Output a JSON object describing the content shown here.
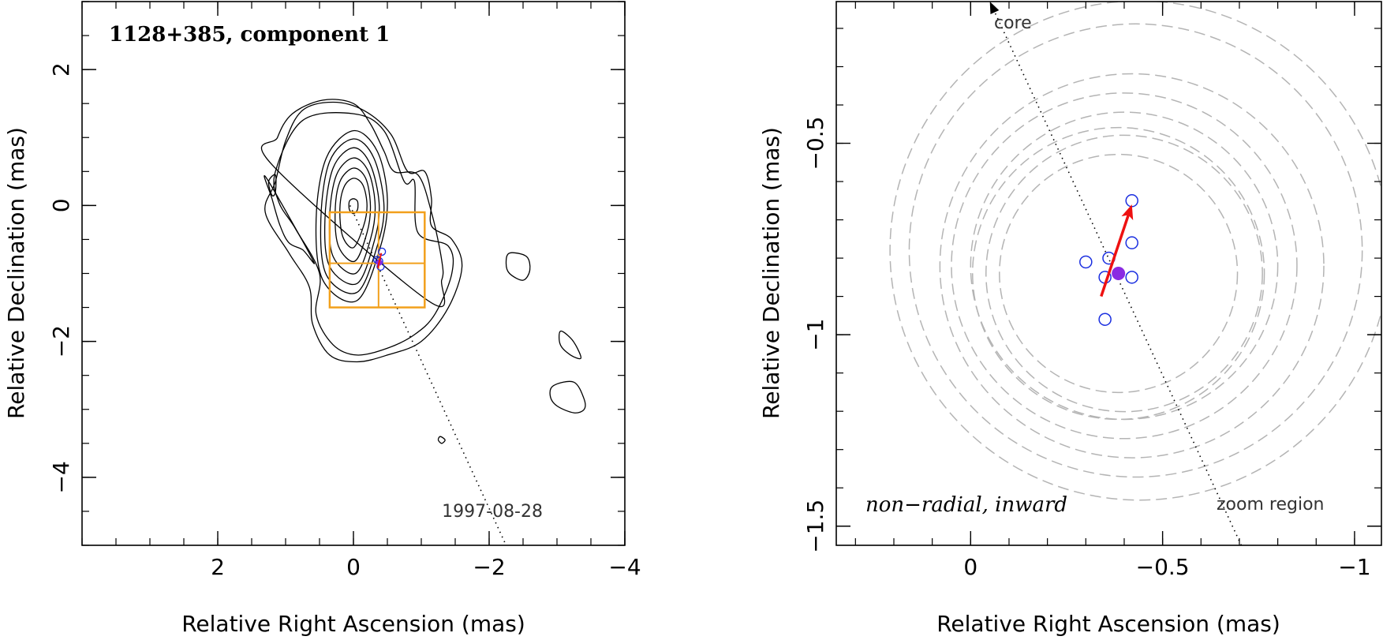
{
  "colors": {
    "axis": "#000000",
    "contour": "#000000",
    "box": "#f2a01c",
    "marker": "#1a2ee0",
    "mean": "#8a2be2",
    "arrow": "#ee1111",
    "circles": "#b4b4b4"
  },
  "chart_data": [
    {
      "type": "contour",
      "title": "1128+385, component 1",
      "xlabel": "Relative Right Ascension (mas)",
      "ylabel": "Relative Declination (mas)",
      "xlim": [
        4.0,
        -4.0
      ],
      "ylim": [
        -5.0,
        3.0
      ],
      "xticks": [
        2,
        0,
        -2,
        -4
      ],
      "xtick_labels": [
        "2",
        "0",
        "−2",
        "−4"
      ],
      "yticks": [
        2,
        0,
        -2,
        -4
      ],
      "ytick_labels": [
        "2",
        "0",
        "−2",
        "−4"
      ],
      "epoch_label": "1997-08-28",
      "contours": [
        [
          [
            0.0,
            1.1
          ],
          [
            -0.35,
            0.8
          ],
          [
            -0.5,
            0.1
          ],
          [
            -0.4,
            -0.6
          ],
          [
            -0.05,
            -1.4
          ],
          [
            0.45,
            -1.1
          ],
          [
            0.55,
            -0.2
          ],
          [
            0.4,
            0.7
          ]
        ],
        [
          [
            0.0,
            0.98
          ],
          [
            -0.3,
            0.7
          ],
          [
            -0.45,
            0.0
          ],
          [
            -0.35,
            -0.6
          ],
          [
            -0.05,
            -1.28
          ],
          [
            0.4,
            -1.02
          ],
          [
            0.48,
            -0.2
          ],
          [
            0.35,
            0.65
          ]
        ],
        [
          [
            0.0,
            0.85
          ],
          [
            -0.25,
            0.6
          ],
          [
            -0.38,
            0.0
          ],
          [
            -0.3,
            -0.55
          ],
          [
            -0.05,
            -1.15
          ],
          [
            0.35,
            -0.9
          ],
          [
            0.42,
            -0.2
          ],
          [
            0.3,
            0.55
          ]
        ],
        [
          [
            0.0,
            0.7
          ],
          [
            -0.22,
            0.5
          ],
          [
            -0.32,
            0.0
          ],
          [
            -0.25,
            -0.5
          ],
          [
            -0.03,
            -1.0
          ],
          [
            0.3,
            -0.75
          ],
          [
            0.35,
            -0.15
          ],
          [
            0.25,
            0.45
          ]
        ],
        [
          [
            0.0,
            0.55
          ],
          [
            -0.18,
            0.4
          ],
          [
            -0.25,
            0.0
          ],
          [
            -0.2,
            -0.4
          ],
          [
            -0.02,
            -0.82
          ],
          [
            0.22,
            -0.6
          ],
          [
            0.27,
            -0.1
          ],
          [
            0.2,
            0.35
          ]
        ],
        [
          [
            0.0,
            0.4
          ],
          [
            -0.14,
            0.3
          ],
          [
            -0.2,
            0.0
          ],
          [
            -0.15,
            -0.3
          ],
          [
            0.0,
            -0.62
          ],
          [
            0.16,
            -0.45
          ],
          [
            0.2,
            -0.05
          ],
          [
            0.14,
            0.27
          ]
        ],
        [
          [
            0.0,
            0.1
          ],
          [
            -0.06,
            0.06
          ],
          [
            -0.06,
            -0.06
          ],
          [
            0.0,
            -0.12
          ],
          [
            0.06,
            -0.06
          ],
          [
            0.06,
            0.06
          ]
        ],
        [
          [
            1.15,
            0.5
          ],
          [
            0.75,
            1.25
          ],
          [
            0.0,
            1.35
          ],
          [
            -0.45,
            1.1
          ],
          [
            -0.75,
            0.35
          ],
          [
            -0.9,
            0.35
          ],
          [
            -0.95,
            -0.4
          ],
          [
            -1.4,
            -0.6
          ],
          [
            -1.45,
            -1.0
          ],
          [
            -1.2,
            -1.6
          ],
          [
            -0.9,
            -1.9
          ],
          [
            -0.5,
            -2.1
          ],
          [
            -0.05,
            -2.2
          ],
          [
            0.3,
            -2.05
          ],
          [
            0.55,
            -1.6
          ],
          [
            0.5,
            -1.0
          ],
          [
            0.85,
            -0.35
          ],
          [
            1.1,
            0.05
          ]
        ],
        [
          [
            1.3,
            -0.1
          ],
          [
            1.15,
            0.35
          ],
          [
            1.0,
            0.95
          ],
          [
            0.75,
            1.4
          ],
          [
            0.3,
            1.52
          ],
          [
            -0.15,
            1.4
          ],
          [
            -0.55,
            1.05
          ],
          [
            -0.8,
            0.5
          ],
          [
            -1.05,
            0.5
          ],
          [
            -1.15,
            0.1
          ],
          [
            -1.15,
            -0.3
          ],
          [
            -1.45,
            -0.5
          ],
          [
            -1.6,
            -0.9
          ],
          [
            -1.4,
            -1.5
          ],
          [
            -1.0,
            -2.0
          ],
          [
            -0.5,
            -2.2
          ],
          [
            -0.05,
            -2.3
          ],
          [
            0.35,
            -2.2
          ],
          [
            0.6,
            -1.75
          ],
          [
            0.65,
            -1.2
          ],
          [
            0.95,
            -0.7
          ]
        ],
        [
          [
            1.2,
            0.6
          ],
          [
            1.12,
            1.0
          ],
          [
            0.9,
            1.35
          ],
          [
            0.45,
            1.55
          ],
          [
            0.0,
            1.5
          ],
          [
            -0.25,
            1.2
          ],
          [
            -0.45,
            0.8
          ],
          [
            -0.6,
            0.5
          ],
          [
            -0.95,
            0.45
          ],
          [
            -1.15,
            -0.1
          ],
          [
            -1.3,
            -0.8
          ],
          [
            -1.3,
            -1.1
          ],
          [
            -1.1,
            -1.4
          ]
        ],
        [
          [
            1.28,
            0.4
          ],
          [
            1.2,
            0.1
          ],
          [
            1.08,
            -0.3
          ],
          [
            0.95,
            -0.55
          ],
          [
            0.75,
            -0.65
          ],
          [
            0.6,
            -0.8
          ]
        ],
        [
          [
            -2.3,
            -0.7
          ],
          [
            -2.55,
            -0.75
          ],
          [
            -2.6,
            -0.95
          ],
          [
            -2.5,
            -1.1
          ],
          [
            -2.3,
            -1.0
          ],
          [
            -2.25,
            -0.85
          ]
        ],
        [
          [
            1.25,
            0.35
          ],
          [
            1.15,
            0.45
          ],
          [
            1.15,
            0.2
          ],
          [
            1.2,
            0.15
          ]
        ],
        [
          [
            -3.05,
            -1.85
          ],
          [
            -3.2,
            -1.95
          ],
          [
            -3.3,
            -2.1
          ],
          [
            -3.35,
            -2.25
          ],
          [
            -3.2,
            -2.2
          ],
          [
            -3.05,
            -2.05
          ]
        ],
        [
          [
            -2.95,
            -2.65
          ],
          [
            -3.25,
            -2.6
          ],
          [
            -3.4,
            -2.85
          ],
          [
            -3.4,
            -3.0
          ],
          [
            -3.25,
            -3.05
          ],
          [
            -3.0,
            -2.95
          ],
          [
            -2.9,
            -2.8
          ]
        ],
        [
          [
            -1.28,
            -3.4
          ],
          [
            -1.35,
            -3.45
          ],
          [
            -1.3,
            -3.5
          ],
          [
            -1.25,
            -3.45
          ]
        ]
      ],
      "boxes": [
        {
          "x0": 0.35,
          "x1": -1.05,
          "y0": -0.1,
          "y1": -1.5
        },
        {
          "x0": 0.35,
          "x1": -1.05,
          "y0": -0.85,
          "y1": -0.85
        },
        {
          "x0": -0.37,
          "x1": -0.37,
          "y0": -0.1,
          "y1": -1.5
        }
      ],
      "cluster_points": [
        [
          -0.42,
          -0.68
        ],
        [
          -0.35,
          -0.8
        ],
        [
          -0.4,
          -0.9
        ],
        [
          -0.38,
          -0.82
        ]
      ],
      "component_position": [
        -0.38,
        -0.84
      ],
      "path_line": [
        [
          0.05,
          0.0
        ],
        [
          -2.25,
          -5.0
        ]
      ]
    },
    {
      "type": "scatter",
      "xlabel": "Relative Right Ascension (mas)",
      "ylabel": "Relative Declination (mas)",
      "xlim": [
        0.35,
        -1.07
      ],
      "ylim": [
        -1.55,
        -0.13
      ],
      "xticks": [
        0,
        -0.5,
        -1
      ],
      "xtick_labels": [
        "0",
        "−0.5",
        "−1"
      ],
      "yticks": [
        -0.5,
        -1,
        -1.5
      ],
      "ytick_labels": [
        "−0.5",
        "−1",
        "−1.5"
      ],
      "annotation": "non−radial, inward",
      "core_label": "core",
      "zoom_label": "zoom region",
      "points": [
        [
          -0.42,
          -0.65
        ],
        [
          -0.3,
          -0.81
        ],
        [
          -0.36,
          -0.8
        ],
        [
          -0.35,
          -0.85
        ],
        [
          -0.42,
          -0.76
        ],
        [
          -0.42,
          -0.85
        ],
        [
          -0.35,
          -0.96
        ]
      ],
      "mean_position": [
        -0.385,
        -0.84
      ],
      "velocity_arrow": {
        "from": [
          -0.34,
          -0.9
        ],
        "to": [
          -0.42,
          -0.66
        ]
      },
      "core_direction": {
        "from": [
          -0.705,
          -1.55
        ],
        "to": [
          -0.05,
          -0.13
        ]
      },
      "error_circles": [
        {
          "cx": -0.385,
          "cy": -0.84,
          "r": 0.31
        },
        {
          "cx": -0.385,
          "cy": -0.84,
          "r": 0.38
        },
        {
          "cx": -0.4,
          "cy": -0.84,
          "r": 0.36
        },
        {
          "cx": -0.4,
          "cy": -0.82,
          "r": 0.4
        },
        {
          "cx": -0.4,
          "cy": -0.82,
          "r": 0.45
        },
        {
          "cx": -0.42,
          "cy": -0.82,
          "r": 0.5
        },
        {
          "cx": -0.43,
          "cy": -0.78,
          "r": 0.59
        },
        {
          "cx": -0.44,
          "cy": -0.78,
          "r": 0.65
        }
      ]
    }
  ]
}
